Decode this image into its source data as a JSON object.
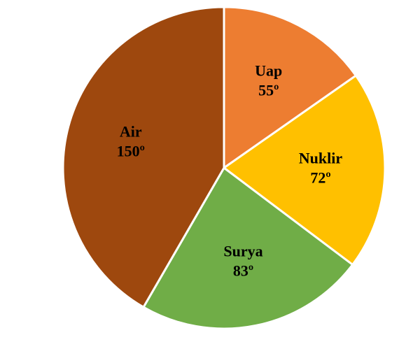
{
  "chart_data": {
    "type": "pie",
    "categories": [
      "Uap",
      "Nuklir",
      "Surya",
      "Air"
    ],
    "values": [
      55,
      72,
      83,
      150
    ],
    "value_labels": [
      "55º",
      "72º",
      "83º",
      "150º"
    ],
    "colors": [
      "#ED7D31",
      "#FFC000",
      "#70AD47",
      "#9E480E"
    ]
  }
}
